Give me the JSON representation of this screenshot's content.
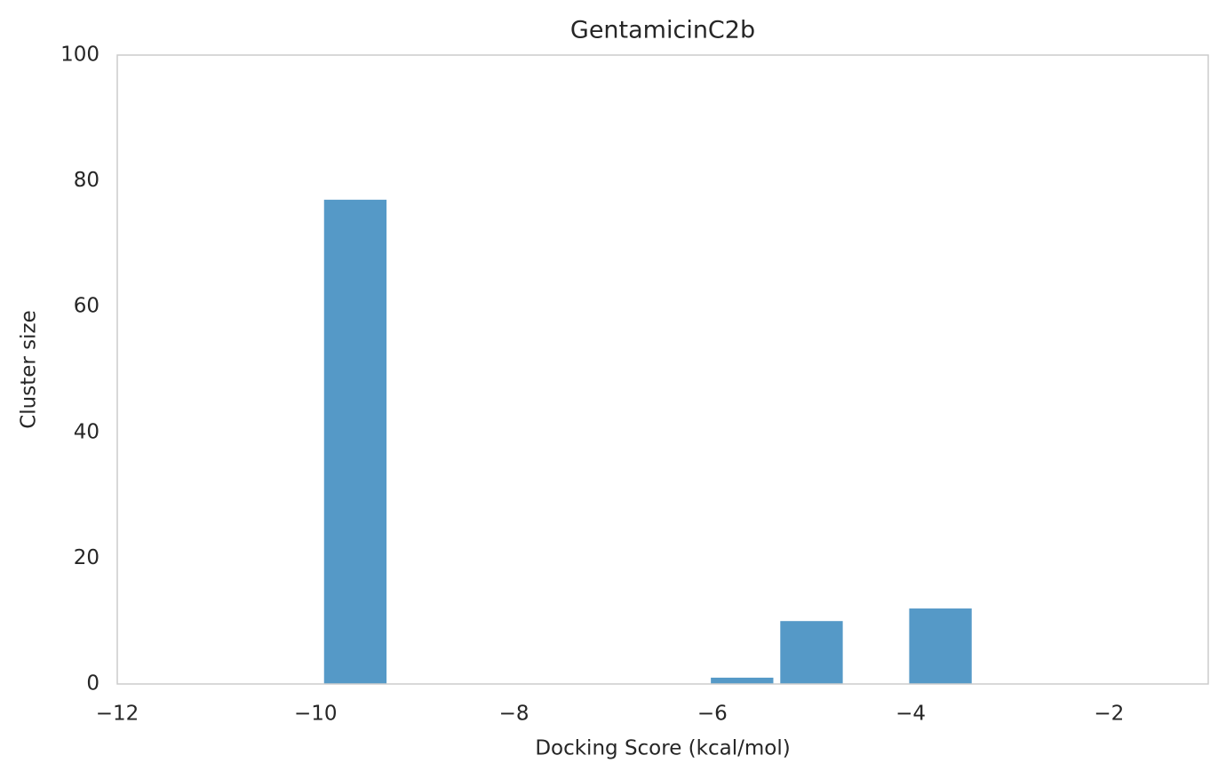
{
  "chart_data": {
    "type": "bar",
    "title": "GentamicinC2b",
    "x_label": "Docking Score (kcal/mol)",
    "y_label": "Cluster size",
    "x": [
      -9.6,
      -5.7,
      -5.0,
      -3.7
    ],
    "values": [
      77,
      1,
      10,
      12
    ],
    "color": "#5599c7",
    "xlim": [
      -12,
      -1
    ],
    "ylim": [
      0,
      100
    ],
    "xticks": [
      {
        "value": -12,
        "label": "−12"
      },
      {
        "value": -10,
        "label": "−10"
      },
      {
        "value": -8,
        "label": "−8"
      },
      {
        "value": -6,
        "label": "−6"
      },
      {
        "value": -4,
        "label": "−4"
      },
      {
        "value": -2,
        "label": "−2"
      }
    ],
    "yticks": [
      0,
      20,
      40,
      60,
      80,
      100
    ],
    "grid": false
  }
}
